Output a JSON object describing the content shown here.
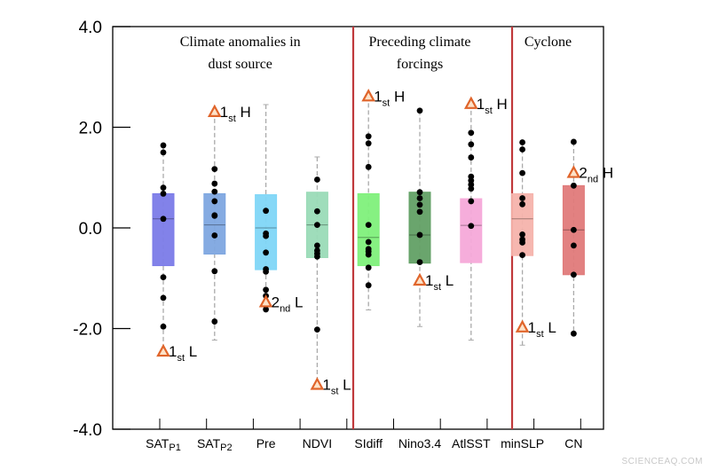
{
  "chart_data": {
    "type": "box",
    "ylim": [
      -4.0,
      4.0
    ],
    "yticks": [
      "4.0",
      "2.0",
      "0.0",
      "-2.0",
      "-4.0"
    ],
    "ytick_values": [
      4,
      2,
      0,
      -2,
      -4
    ],
    "grid": false,
    "sections": [
      {
        "lines": [
          "Climate anomalies in",
          "dust source"
        ],
        "categories": [
          0,
          1,
          2,
          3
        ]
      },
      {
        "lines": [
          "Preceding climate",
          "forcings"
        ],
        "categories": [
          4,
          5,
          6
        ]
      },
      {
        "lines": [
          "Cyclone"
        ],
        "categories": [
          7,
          8
        ]
      }
    ],
    "separator_color": "#c0393b",
    "marker_color": "#e0652b",
    "boxes": [
      {
        "label": "SAT",
        "sub": "P1",
        "color": "#7b7be8",
        "q1": -0.75,
        "median": 0.18,
        "q3": 0.68,
        "whisker_low": -2.45,
        "whisker_high": 1.64,
        "cap_low": false,
        "cap_high": false,
        "points": [
          1.64,
          1.5,
          0.8,
          0.68,
          0.18,
          -0.98,
          -1.39,
          -1.96
        ],
        "marker": {
          "value": -2.45,
          "rank": "1",
          "rank_sub": "st",
          "type": "L"
        }
      },
      {
        "label": "SAT",
        "sub": "P2",
        "color": "#7ea7e0",
        "q1": -0.52,
        "median": 0.06,
        "q3": 0.68,
        "whisker_low": -2.23,
        "whisker_high": 2.31,
        "cap_low": true,
        "cap_high": false,
        "points": [
          1.17,
          0.88,
          0.72,
          0.53,
          0.25,
          0.24,
          -0.15,
          -0.86,
          -1.86
        ],
        "marker": {
          "value": 2.31,
          "rank": "1",
          "rank_sub": "st",
          "type": "H"
        }
      },
      {
        "label": "Pre",
        "sub": "",
        "color": "#7fd6f7",
        "q1": -0.83,
        "median": 0.0,
        "q3": 0.66,
        "whisker_low": -1.62,
        "whisker_high": 2.45,
        "cap_low": false,
        "cap_high": true,
        "points": [
          0.34,
          -0.11,
          -0.16,
          -0.49,
          -0.82,
          -0.87,
          -1.23,
          -1.35,
          -1.62
        ],
        "marker": {
          "value": -1.47,
          "rank": "2",
          "rank_sub": "nd",
          "type": "L"
        }
      },
      {
        "label": "NDVI",
        "sub": "",
        "color": "#9adbb7",
        "q1": -0.59,
        "median": 0.06,
        "q3": 0.71,
        "whisker_low": -3.11,
        "whisker_high": 1.41,
        "cap_low": false,
        "cap_high": true,
        "points": [
          0.96,
          0.33,
          0.06,
          -0.35,
          -0.45,
          -0.51,
          -0.57,
          -2.02
        ],
        "marker": {
          "value": -3.11,
          "rank": "1",
          "rank_sub": "st",
          "type": "L"
        }
      },
      {
        "label": "SIdiff",
        "sub": "",
        "color": "#80f07b",
        "q1": -0.75,
        "median": -0.19,
        "q3": 0.68,
        "whisker_low": -1.63,
        "whisker_high": 2.62,
        "cap_low": true,
        "cap_high": false,
        "points": [
          1.82,
          1.68,
          1.21,
          0.06,
          -0.28,
          -0.42,
          -0.47,
          -0.53,
          -0.79,
          -1.14
        ],
        "marker": {
          "value": 2.62,
          "rank": "1",
          "rank_sub": "st",
          "type": "H"
        }
      },
      {
        "label": "Nino3.4",
        "sub": "",
        "color": "#62a065",
        "q1": -0.7,
        "median": -0.14,
        "q3": 0.71,
        "whisker_low": -1.96,
        "whisker_high": 2.33,
        "cap_low": true,
        "cap_high": false,
        "points": [
          2.33,
          0.71,
          0.59,
          0.46,
          0.32,
          -0.14,
          -0.68
        ],
        "marker": {
          "value": -1.04,
          "rank": "1",
          "rank_sub": "st",
          "type": "L"
        }
      },
      {
        "label": "AtlSST",
        "sub": "",
        "color": "#f6a9d9",
        "q1": -0.69,
        "median": 0.05,
        "q3": 0.58,
        "whisker_low": -2.23,
        "whisker_high": 2.47,
        "cap_low": true,
        "cap_high": false,
        "points": [
          1.89,
          1.66,
          1.4,
          1.02,
          0.94,
          0.86,
          0.78,
          0.53,
          0.04
        ],
        "marker": {
          "value": 2.47,
          "rank": "1",
          "rank_sub": "st",
          "type": "H"
        }
      },
      {
        "label": "minSLP",
        "sub": "",
        "color": "#f5b3ac",
        "q1": -0.55,
        "median": 0.18,
        "q3": 0.68,
        "whisker_low": -2.33,
        "whisker_high": 1.7,
        "cap_low": true,
        "cap_high": false,
        "points": [
          1.7,
          1.56,
          1.09,
          0.59,
          0.47,
          -0.13,
          -0.23,
          -0.29,
          -0.54
        ],
        "marker": {
          "value": -1.97,
          "rank": "1",
          "rank_sub": "st",
          "type": "L"
        }
      },
      {
        "label": "CN",
        "sub": "",
        "color": "#e07a7a",
        "q1": -0.93,
        "median": -0.04,
        "q3": 0.84,
        "whisker_low": -2.1,
        "whisker_high": 1.71,
        "cap_low": false,
        "cap_high": false,
        "points": [
          1.71,
          0.84,
          -0.04,
          -0.35,
          -0.93,
          -2.1
        ],
        "marker": {
          "value": 1.1,
          "rank": "2",
          "rank_sub": "nd",
          "type": "H"
        }
      }
    ]
  },
  "watermark": "SCIENCEAQ.COM"
}
